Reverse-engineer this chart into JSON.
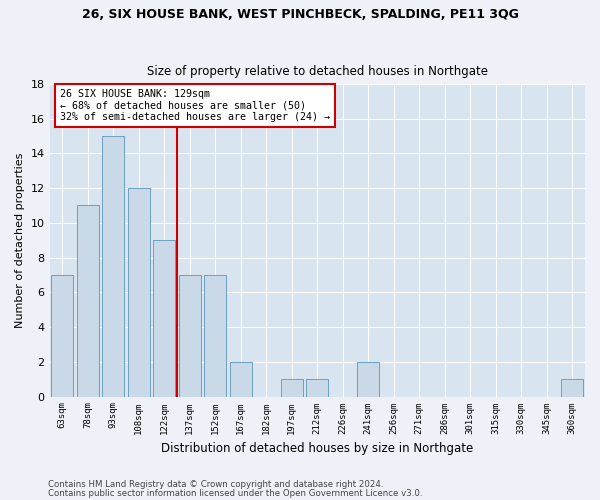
{
  "title1": "26, SIX HOUSE BANK, WEST PINCHBECK, SPALDING, PE11 3QG",
  "title2": "Size of property relative to detached houses in Northgate",
  "xlabel": "Distribution of detached houses by size in Northgate",
  "ylabel": "Number of detached properties",
  "categories": [
    "63sqm",
    "78sqm",
    "93sqm",
    "108sqm",
    "122sqm",
    "137sqm",
    "152sqm",
    "167sqm",
    "182sqm",
    "197sqm",
    "212sqm",
    "226sqm",
    "241sqm",
    "256sqm",
    "271sqm",
    "286sqm",
    "301sqm",
    "315sqm",
    "330sqm",
    "345sqm",
    "360sqm"
  ],
  "values": [
    7,
    11,
    15,
    12,
    9,
    7,
    7,
    2,
    0,
    1,
    1,
    0,
    2,
    0,
    0,
    0,
    0,
    0,
    0,
    0,
    1
  ],
  "bar_color": "#c9d9e8",
  "bar_edge_color": "#6a9fc0",
  "vline_x": 4.5,
  "vline_color": "#cc0000",
  "annotation_title": "26 SIX HOUSE BANK: 129sqm",
  "annotation_line1": "← 68% of detached houses are smaller (50)",
  "annotation_line2": "32% of semi-detached houses are larger (24) →",
  "annotation_box_color": "#ffffff",
  "annotation_box_edge": "#cc0000",
  "ylim": [
    0,
    18
  ],
  "yticks": [
    0,
    2,
    4,
    6,
    8,
    10,
    12,
    14,
    16,
    18
  ],
  "footer1": "Contains HM Land Registry data © Crown copyright and database right 2024.",
  "footer2": "Contains public sector information licensed under the Open Government Licence v3.0.",
  "bg_color": "#eef2f8",
  "plot_bg_color": "#d8e4f0"
}
